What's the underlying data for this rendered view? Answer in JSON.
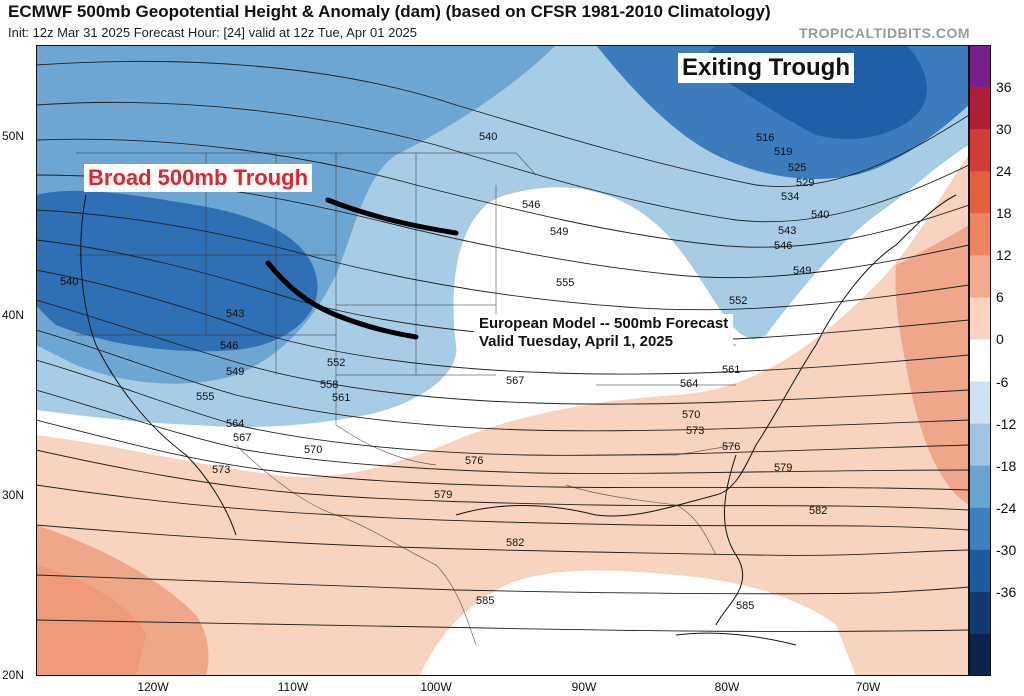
{
  "header": {
    "title": "ECMWF 500mb Geopotential Height & Anomaly (dam) (based on CFSR 1981-2010 Climatology)",
    "subtitle": "Init: 12z Mar 31 2025   Forecast Hour: [24]   valid at 12z Tue, Apr 01 2025",
    "brand": "TROPICALTIDBITS.COM"
  },
  "annotations": {
    "exiting": "Exiting Trough",
    "broad": "Broad 500mb Trough",
    "european_line1": "European Model -- 500mb Forecast",
    "european_line2": "Valid Tuesday, April 1, 2025"
  },
  "axes": {
    "latitudes": [
      "50N",
      "40N",
      "30N",
      "20N"
    ],
    "longitudes": [
      "120W",
      "110W",
      "100W",
      "90W",
      "80W",
      "70W"
    ]
  },
  "colors": {
    "anomaly_neg_strong": "#1f5fa6",
    "anomaly_neg_mid": "#4a8cc6",
    "anomaly_neg_light": "#a7cde6",
    "neutral": "#ffffff",
    "anomaly_pos_light": "#f8d3c0",
    "anomaly_pos_mid": "#f0a789",
    "trough_axis": "#000000"
  },
  "chart_data": {
    "type": "map",
    "field": "500mb geopotential height (dam) with anomaly shading",
    "colorbar": {
      "ticks": [
        36,
        30,
        24,
        18,
        12,
        6,
        0,
        -6,
        -12,
        -18,
        -24,
        -30,
        -36
      ],
      "colors": [
        "#7a1f8a",
        "#b0203a",
        "#cf3d33",
        "#e35f3e",
        "#ed8562",
        "#f4aa8c",
        "#f9d3c0",
        "#ffffff",
        "#cde3f1",
        "#9cc6e3",
        "#6aa4d1",
        "#3e7fbd",
        "#1e5b9e",
        "#123a73",
        "#0c2350"
      ]
    },
    "contour_labels": [
      "516",
      "519",
      "525",
      "529",
      "534",
      "540",
      "543",
      "546",
      "549",
      "552",
      "555",
      "558",
      "561",
      "564",
      "567",
      "570",
      "573",
      "576",
      "579",
      "582",
      "585"
    ],
    "trough_axes": 2
  }
}
